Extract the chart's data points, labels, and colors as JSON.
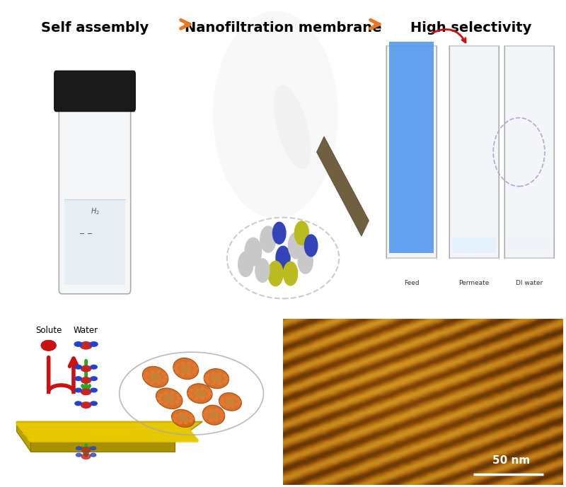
{
  "label_fontsize": 14,
  "label_color": "#000000",
  "arrow_color": "#E87722",
  "background_color": "#ffffff",
  "panel1_bg": "#d0d0d0",
  "panel2_bg": "#3a8fa8",
  "panel3_bg": "#c8c8cc",
  "panel4_bg": "#e0e5ee",
  "scalebar_text": "50 nm",
  "scalebar_color": "#ffffff",
  "feed_label": "Feed",
  "permeate_label": "Permeate",
  "di_label": "DI water",
  "solute_label": "Solute",
  "water_label": "Water",
  "label1": "Self assembly",
  "label2": "Nanofiltration membrane",
  "label3": "High selectivity",
  "afm_dark": [
    0.28,
    0.14,
    0.01
  ],
  "afm_mid": [
    0.62,
    0.35,
    0.04
  ],
  "afm_light": [
    0.82,
    0.58,
    0.12
  ]
}
